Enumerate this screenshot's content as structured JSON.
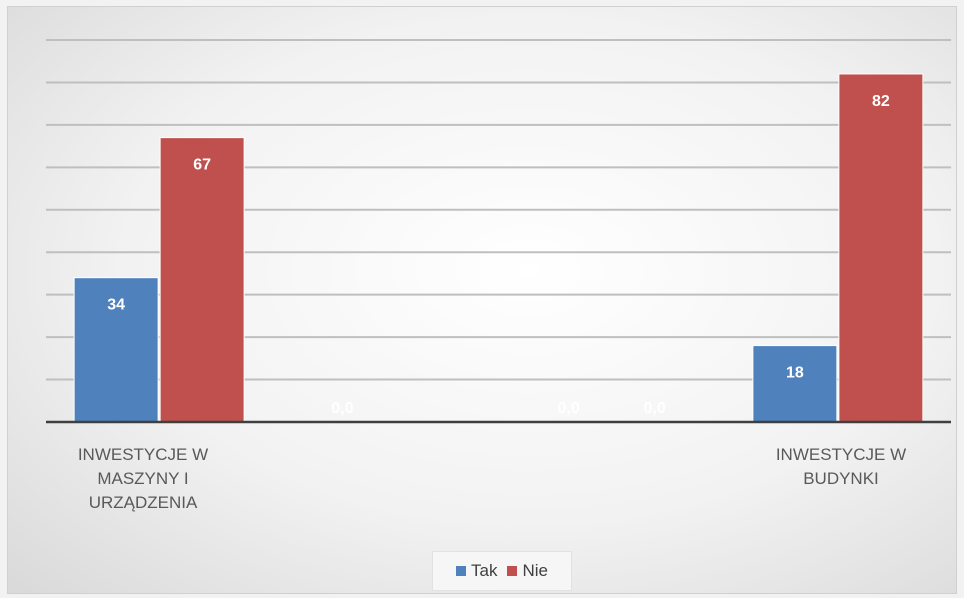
{
  "chart_data": {
    "type": "bar",
    "categories": [
      "INWESTYCJE W\nMASZYNY  I\nURZĄDZENIA",
      "",
      "",
      "INWESTYCJE W\nBUDYNKI"
    ],
    "series": [
      {
        "name": "Tak",
        "color": "#4f81bd",
        "values": [
          34,
          0,
          0,
          18
        ],
        "labels": [
          "34",
          "0,0",
          "0,0",
          "18"
        ]
      },
      {
        "name": "Nie",
        "color": "#c0504d",
        "values": [
          67,
          0,
          0,
          82
        ],
        "labels": [
          "67",
          "",
          "0,0",
          "82"
        ]
      }
    ],
    "ylim": [
      0,
      90
    ],
    "grid": true,
    "legend": "bottom"
  }
}
